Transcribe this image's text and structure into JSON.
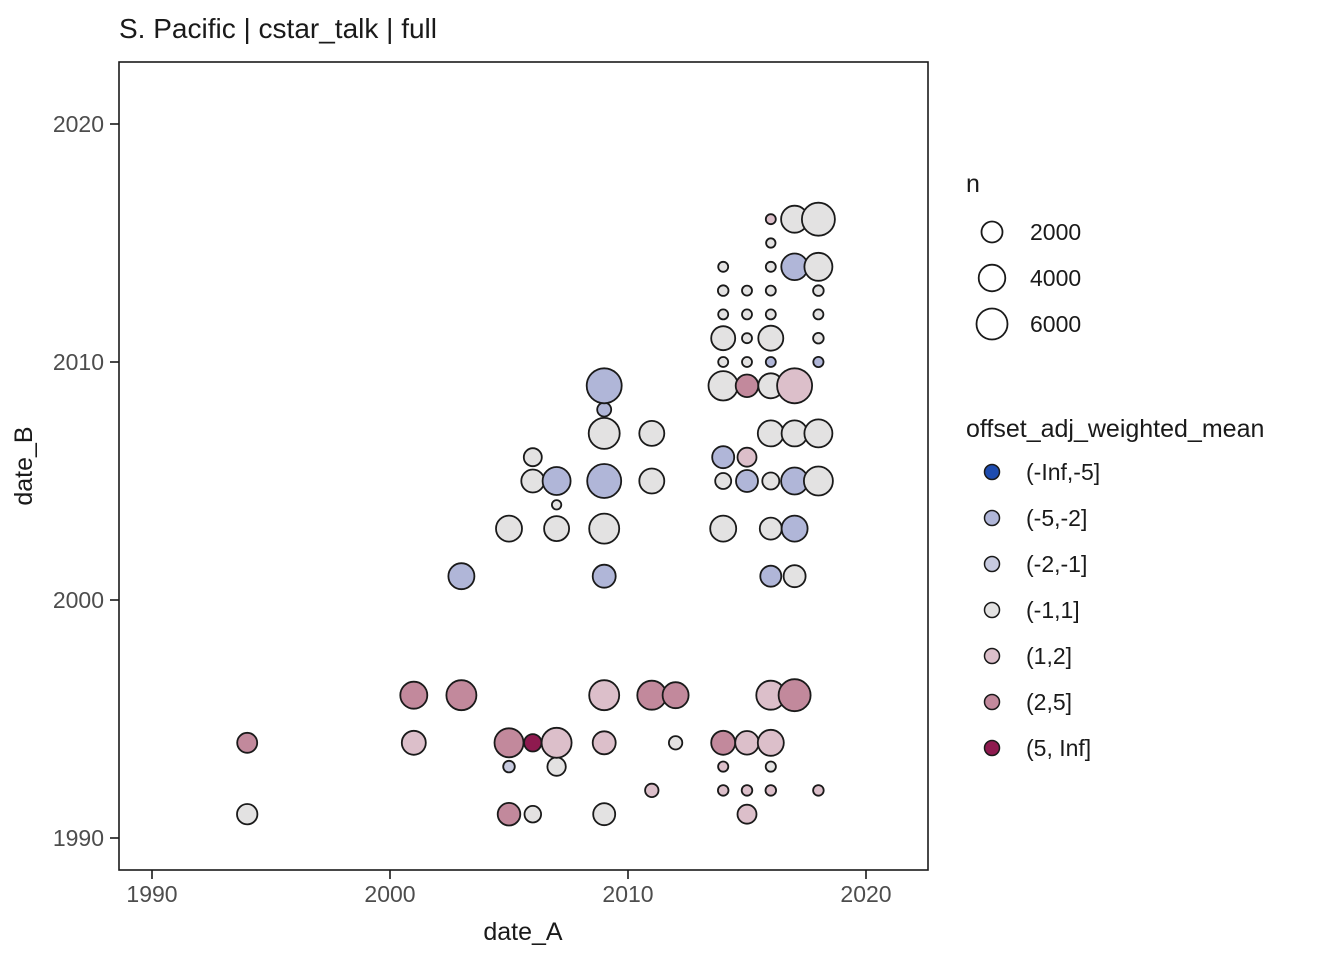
{
  "title": "S. Pacific | cstar_talk | full",
  "chart_data": {
    "type": "scatter",
    "title": "S. Pacific | cstar_talk | full",
    "xlabel": "date_A",
    "ylabel": "date_B",
    "xlim": [
      1988.6,
      2022.6
    ],
    "ylim": [
      1988.6,
      2022.6
    ],
    "grid": false,
    "x_ticks": [
      "1990",
      "2000",
      "2010",
      "2020"
    ],
    "y_ticks": [
      "1990",
      "2000",
      "2010",
      "2020"
    ],
    "size_legend": {
      "title": "n",
      "breaks": [
        2000,
        4000,
        6000
      ],
      "labels": [
        "2000",
        "4000",
        "6000"
      ]
    },
    "color_legend": {
      "title": "offset_adj_weighted_mean",
      "bins": [
        {
          "label": "(-Inf,-5]",
          "color": "#1e4caf"
        },
        {
          "label": "(-5,-2]",
          "color": "#b0b6d8"
        },
        {
          "label": "(-2,-1]",
          "color": "#c7cadf"
        },
        {
          "label": "(-1,1]",
          "color": "#e3e2e2"
        },
        {
          "label": "(1,2]",
          "color": "#dcbfca"
        },
        {
          "label": "(2,5]",
          "color": "#c2899c"
        },
        {
          "label": "(5, Inf]",
          "color": "#8e1a4f"
        }
      ]
    },
    "points": [
      {
        "x": 1994,
        "y": 1991,
        "n": 1800,
        "bin": "(-1,1]"
      },
      {
        "x": 1994,
        "y": 1994,
        "n": 1700,
        "bin": "(2,5]"
      },
      {
        "x": 2001,
        "y": 1994,
        "n": 3000,
        "bin": "(1,2]"
      },
      {
        "x": 2001,
        "y": 1996,
        "n": 4100,
        "bin": "(2,5]"
      },
      {
        "x": 2003,
        "y": 1996,
        "n": 5500,
        "bin": "(2,5]"
      },
      {
        "x": 2003,
        "y": 2001,
        "n": 3700,
        "bin": "(-5,-2]"
      },
      {
        "x": 2005,
        "y": 1991,
        "n": 2500,
        "bin": "(2,5]"
      },
      {
        "x": 2005,
        "y": 1993,
        "n": 200,
        "bin": "(-2,-1]"
      },
      {
        "x": 2005,
        "y": 1994,
        "n": 5000,
        "bin": "(2,5]"
      },
      {
        "x": 2005,
        "y": 2003,
        "n": 3700,
        "bin": "(-1,1]"
      },
      {
        "x": 2006,
        "y": 1991,
        "n": 900,
        "bin": "(-1,1]"
      },
      {
        "x": 2006,
        "y": 1994,
        "n": 1100,
        "bin": "(5, Inf]"
      },
      {
        "x": 2006,
        "y": 2005,
        "n": 2600,
        "bin": "(-1,1]"
      },
      {
        "x": 2006,
        "y": 2006,
        "n": 1200,
        "bin": "(-1,1]"
      },
      {
        "x": 2007,
        "y": 1993,
        "n": 1300,
        "bin": "(-1,1]"
      },
      {
        "x": 2007,
        "y": 1994,
        "n": 5500,
        "bin": "(1,2]"
      },
      {
        "x": 2007,
        "y": 2003,
        "n": 3350,
        "bin": "(-1,1]"
      },
      {
        "x": 2007,
        "y": 2004,
        "n": 50,
        "bin": "(-1,1]"
      },
      {
        "x": 2007,
        "y": 2005,
        "n": 4600,
        "bin": "(-5,-2]"
      },
      {
        "x": 2009,
        "y": 1991,
        "n": 2300,
        "bin": "(-1,1]"
      },
      {
        "x": 2009,
        "y": 1994,
        "n": 2600,
        "bin": "(1,2]"
      },
      {
        "x": 2009,
        "y": 1996,
        "n": 5500,
        "bin": "(1,2]"
      },
      {
        "x": 2009,
        "y": 2001,
        "n": 2600,
        "bin": "(-5,-2]"
      },
      {
        "x": 2009,
        "y": 2003,
        "n": 5500,
        "bin": "(-1,1]"
      },
      {
        "x": 2009,
        "y": 2005,
        "n": 7600,
        "bin": "(-5,-2]"
      },
      {
        "x": 2009,
        "y": 2007,
        "n": 6000,
        "bin": "(-1,1]"
      },
      {
        "x": 2009,
        "y": 2008,
        "n": 475,
        "bin": "(-5,-2]"
      },
      {
        "x": 2009,
        "y": 2009,
        "n": 8200,
        "bin": "(-5,-2]"
      },
      {
        "x": 2011,
        "y": 1992,
        "n": 400,
        "bin": "(1,2]"
      },
      {
        "x": 2011,
        "y": 1996,
        "n": 5000,
        "bin": "(2,5]"
      },
      {
        "x": 2011,
        "y": 2005,
        "n": 3350,
        "bin": "(-1,1]"
      },
      {
        "x": 2011,
        "y": 2007,
        "n": 3350,
        "bin": "(-1,1]"
      },
      {
        "x": 2012,
        "y": 1994,
        "n": 400,
        "bin": "(-1,1]"
      },
      {
        "x": 2012,
        "y": 1996,
        "n": 3700,
        "bin": "(2,5]"
      },
      {
        "x": 2014,
        "y": 1992,
        "n": 120,
        "bin": "(1,2]"
      },
      {
        "x": 2014,
        "y": 1993,
        "n": 90,
        "bin": "(1,2]"
      },
      {
        "x": 2014,
        "y": 1994,
        "n": 3000,
        "bin": "(2,5]"
      },
      {
        "x": 2014,
        "y": 2003,
        "n": 3700,
        "bin": "(-1,1]"
      },
      {
        "x": 2014,
        "y": 2005,
        "n": 800,
        "bin": "(-1,1]"
      },
      {
        "x": 2014,
        "y": 2006,
        "n": 2300,
        "bin": "(-5,-2]"
      },
      {
        "x": 2014,
        "y": 2009,
        "n": 5200,
        "bin": "(-1,1]"
      },
      {
        "x": 2014,
        "y": 2010,
        "n": 75,
        "bin": "(-1,1]"
      },
      {
        "x": 2014,
        "y": 2011,
        "n": 3000,
        "bin": "(-1,1]"
      },
      {
        "x": 2014,
        "y": 2012,
        "n": 75,
        "bin": "(-1,1]"
      },
      {
        "x": 2014,
        "y": 2013,
        "n": 110,
        "bin": "(-1,1]"
      },
      {
        "x": 2014,
        "y": 2014,
        "n": 75,
        "bin": "(-1,1]"
      },
      {
        "x": 2015,
        "y": 1991,
        "n": 1450,
        "bin": "(1,2]"
      },
      {
        "x": 2015,
        "y": 1992,
        "n": 120,
        "bin": "(1,2]"
      },
      {
        "x": 2015,
        "y": 1994,
        "n": 2800,
        "bin": "(1,2]"
      },
      {
        "x": 2015,
        "y": 2005,
        "n": 2300,
        "bin": "(-5,-2]"
      },
      {
        "x": 2015,
        "y": 2006,
        "n": 1450,
        "bin": "(1,2]"
      },
      {
        "x": 2015,
        "y": 2009,
        "n": 2500,
        "bin": "(2,5]"
      },
      {
        "x": 2015,
        "y": 2010,
        "n": 75,
        "bin": "(-1,1]"
      },
      {
        "x": 2015,
        "y": 2011,
        "n": 75,
        "bin": "(-1,1]"
      },
      {
        "x": 2015,
        "y": 2012,
        "n": 75,
        "bin": "(-1,1]"
      },
      {
        "x": 2015,
        "y": 2013,
        "n": 75,
        "bin": "(-1,1]"
      },
      {
        "x": 2016,
        "y": 1992,
        "n": 120,
        "bin": "(1,2]"
      },
      {
        "x": 2016,
        "y": 1993,
        "n": 90,
        "bin": "(-1,1]"
      },
      {
        "x": 2016,
        "y": 1994,
        "n": 3700,
        "bin": "(1,2]"
      },
      {
        "x": 2016,
        "y": 1996,
        "n": 5000,
        "bin": "(1,2]"
      },
      {
        "x": 2016,
        "y": 2001,
        "n": 2000,
        "bin": "(-5,-2]"
      },
      {
        "x": 2016,
        "y": 2003,
        "n": 2300,
        "bin": "(-1,1]"
      },
      {
        "x": 2016,
        "y": 2005,
        "n": 1000,
        "bin": "(-1,1]"
      },
      {
        "x": 2016,
        "y": 2007,
        "n": 3700,
        "bin": "(-1,1]"
      },
      {
        "x": 2016,
        "y": 2009,
        "n": 3350,
        "bin": "(-1,1]"
      },
      {
        "x": 2016,
        "y": 2010,
        "n": 75,
        "bin": "(-5,-2]"
      },
      {
        "x": 2016,
        "y": 2011,
        "n": 3350,
        "bin": "(-1,1]"
      },
      {
        "x": 2016,
        "y": 2012,
        "n": 75,
        "bin": "(-1,1]"
      },
      {
        "x": 2016,
        "y": 2013,
        "n": 75,
        "bin": "(-1,1]"
      },
      {
        "x": 2016,
        "y": 2014,
        "n": 75,
        "bin": "(-1,1]"
      },
      {
        "x": 2016,
        "y": 2015,
        "n": 50,
        "bin": "(-1,1]"
      },
      {
        "x": 2016,
        "y": 2016,
        "n": 75,
        "bin": "(1,2]"
      },
      {
        "x": 2017,
        "y": 1996,
        "n": 6500,
        "bin": "(2,5]"
      },
      {
        "x": 2017,
        "y": 2001,
        "n": 2300,
        "bin": "(-1,1]"
      },
      {
        "x": 2017,
        "y": 2003,
        "n": 3700,
        "bin": "(-5,-2]"
      },
      {
        "x": 2017,
        "y": 2005,
        "n": 4100,
        "bin": "(-5,-2]"
      },
      {
        "x": 2017,
        "y": 2007,
        "n": 3700,
        "bin": "(-1,1]"
      },
      {
        "x": 2017,
        "y": 2009,
        "n": 8200,
        "bin": "(1,2]"
      },
      {
        "x": 2017,
        "y": 2014,
        "n": 4000,
        "bin": "(-5,-2]"
      },
      {
        "x": 2017,
        "y": 2016,
        "n": 4100,
        "bin": "(-1,1]"
      },
      {
        "x": 2018,
        "y": 1992,
        "n": 120,
        "bin": "(1,2]"
      },
      {
        "x": 2018,
        "y": 2005,
        "n": 5000,
        "bin": "(-1,1]"
      },
      {
        "x": 2018,
        "y": 2007,
        "n": 4600,
        "bin": "(-1,1]"
      },
      {
        "x": 2018,
        "y": 2010,
        "n": 90,
        "bin": "(-5,-2]"
      },
      {
        "x": 2018,
        "y": 2011,
        "n": 120,
        "bin": "(-1,1]"
      },
      {
        "x": 2018,
        "y": 2012,
        "n": 75,
        "bin": "(-1,1]"
      },
      {
        "x": 2018,
        "y": 2013,
        "n": 110,
        "bin": "(-1,1]"
      },
      {
        "x": 2018,
        "y": 2014,
        "n": 4600,
        "bin": "(-1,1]"
      },
      {
        "x": 2018,
        "y": 2016,
        "n": 7000,
        "bin": "(-1,1]"
      }
    ]
  }
}
